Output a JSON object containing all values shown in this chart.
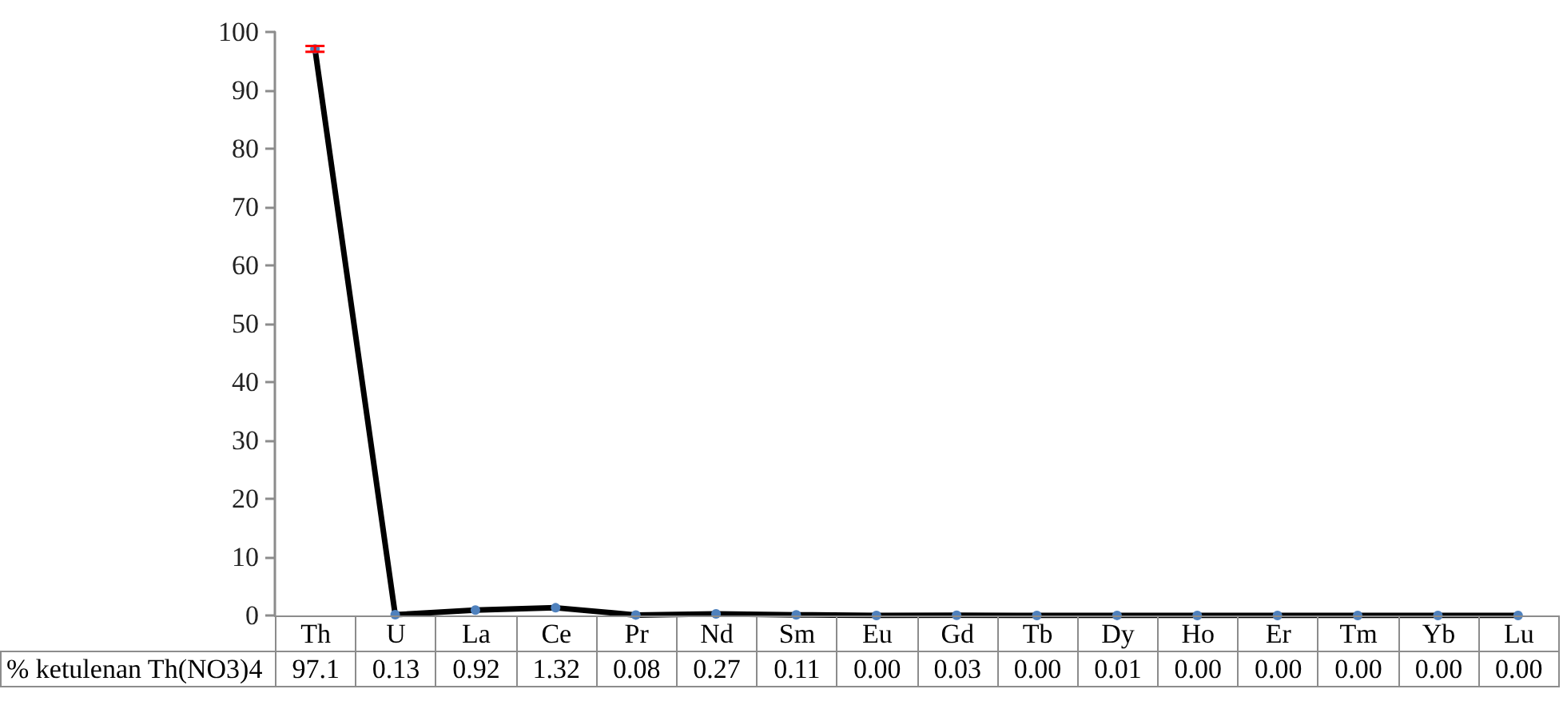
{
  "chart_data": {
    "type": "line",
    "categories": [
      "Th",
      "U",
      "La",
      "Ce",
      "Pr",
      "Nd",
      "Sm",
      "Eu",
      "Gd",
      "Tb",
      "Dy",
      "Ho",
      "Er",
      "Tm",
      "Yb",
      "Lu"
    ],
    "series": [
      {
        "name": "% ketulenan Th(NO3)4",
        "color": "#000000",
        "values": [
          97.1,
          0.13,
          0.92,
          1.32,
          0.08,
          0.27,
          0.11,
          0.0,
          0.03,
          0.0,
          0.01,
          0.0,
          0.0,
          0.0,
          0.0,
          0.0
        ],
        "value_labels": [
          "97.1",
          "0.13",
          "0.92",
          "1.32",
          "0.08",
          "0.27",
          "0.11",
          "0.00",
          "0.03",
          "0.00",
          "0.01",
          "0.00",
          "0.00",
          "0.00",
          "0.00",
          "0.00"
        ],
        "errors": [
          0.5,
          null,
          null,
          null,
          null,
          null,
          null,
          null,
          null,
          null,
          null,
          null,
          null,
          null,
          null,
          null
        ]
      }
    ],
    "ylim": [
      0,
      100
    ],
    "yticks": [
      0,
      10,
      20,
      30,
      40,
      50,
      60,
      70,
      80,
      90,
      100
    ],
    "marker": "circle",
    "line_style": "solid",
    "grid": false,
    "legend": false
  }
}
